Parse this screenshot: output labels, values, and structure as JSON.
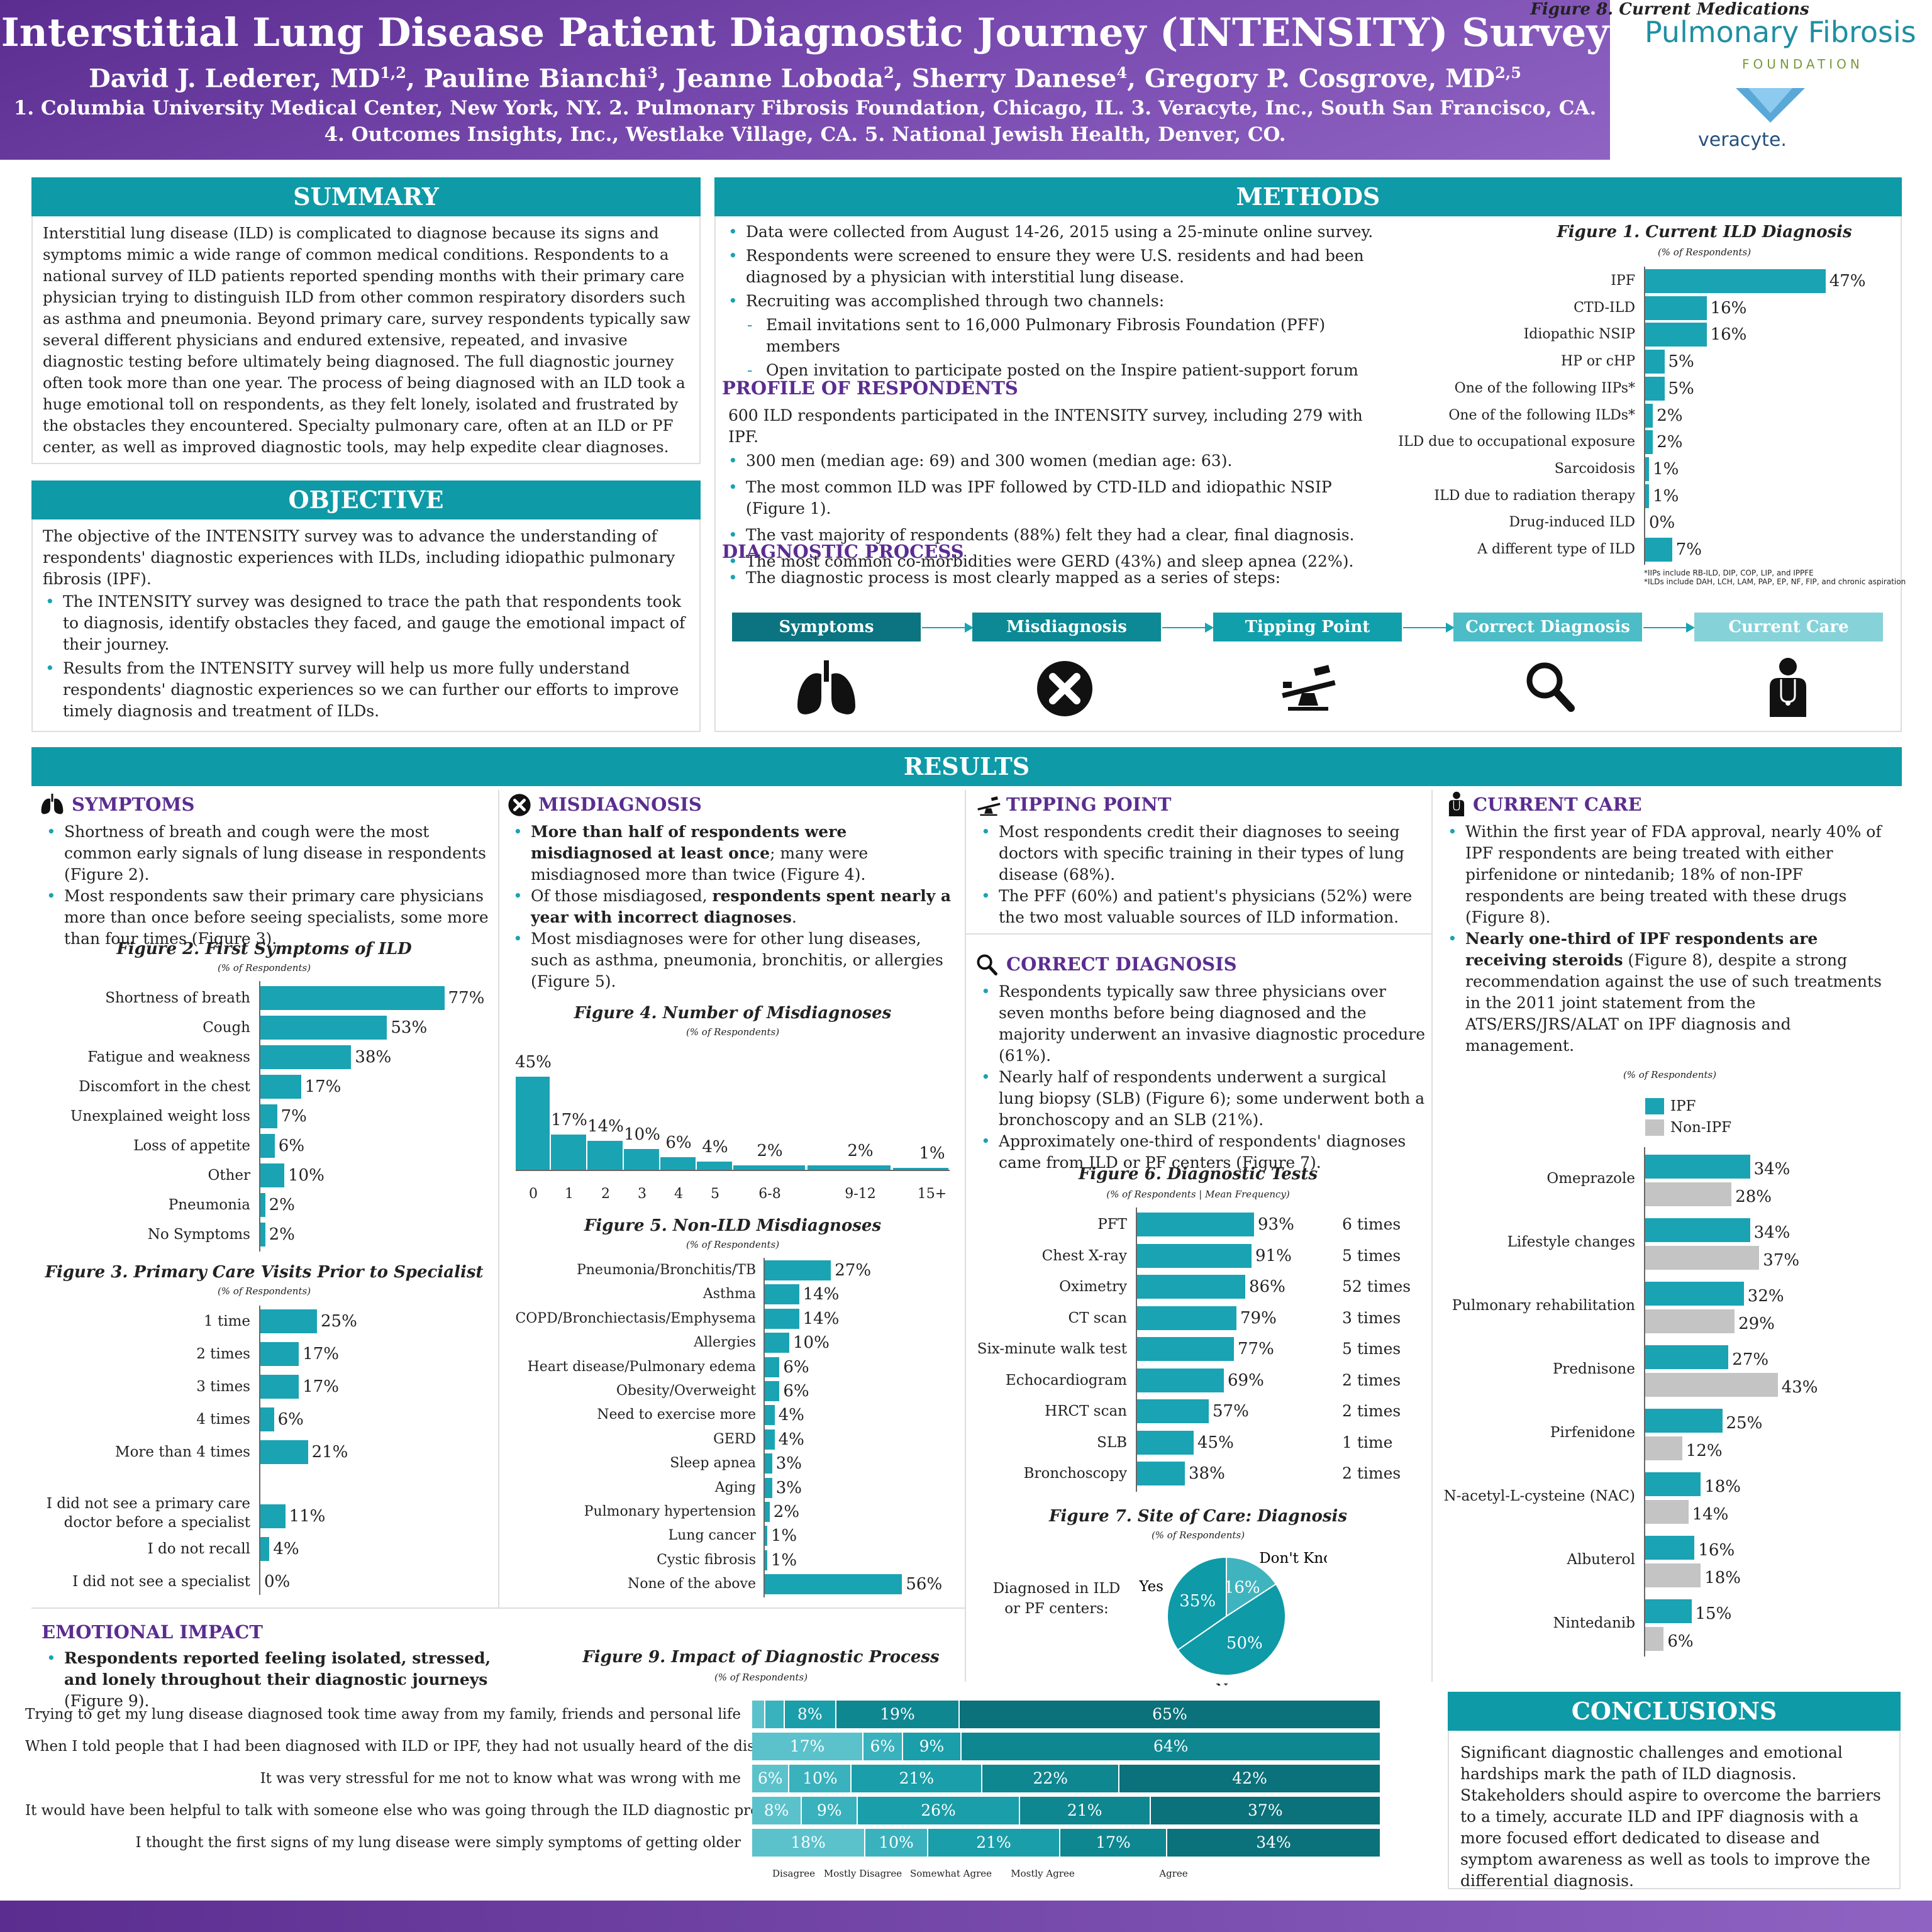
{
  "header": {
    "title": "Interstitial Lung Disease Patient Diagnostic Journey (INTENSITY) Survey",
    "authors": [
      {
        "name": "David J. Lederer, MD",
        "sup": "1,2"
      },
      {
        "name": "Pauline Bianchi",
        "sup": "3"
      },
      {
        "name": "Jeanne Loboda",
        "sup": "2"
      },
      {
        "name": "Sherry Danese",
        "sup": "4"
      },
      {
        "name": "Gregory P. Cosgrove, MD",
        "sup": "2,5"
      }
    ],
    "aff1": "1. Columbia University Medical Center, New York, NY. 2. Pulmonary Fibrosis Foundation, Chicago, IL. 3. Veracyte, Inc., South San Francisco, CA.",
    "aff2": "4. Outcomes Insights, Inc., Westlake Village, CA. 5. National Jewish Health, Denver, CO.",
    "logo1": "Pulmonary Fibrosis",
    "logo1b": "FOUNDATION",
    "logo2": "veracyte."
  },
  "summary": {
    "title": "SUMMARY",
    "text": "Interstitial lung disease (ILD) is complicated to diagnose because its signs and symptoms mimic a wide range of common medical conditions. Respondents to a national survey of ILD patients reported spending  months with their primary care physician trying to distinguish ILD from other common respiratory disorders such as asthma and pneumonia. Beyond primary care, survey respondents typically saw several different physicians and endured extensive, repeated, and invasive diagnostic testing before ultimately being diagnosed. The full diagnostic journey often took more than one year. The process of being diagnosed with an ILD took a huge emotional toll on respondents, as they felt lonely, isolated and frustrated by the obstacles they encountered. Specialty pulmonary care, often at an ILD or PF center, as well as improved diagnostic tools, may help expedite clear diagnoses."
  },
  "objective": {
    "title": "OBJECTIVE",
    "text": "The objective of the INTENSITY survey was to advance the understanding of respondents' diagnostic experiences with ILDs, including idiopathic pulmonary fibrosis (IPF).",
    "bullets": [
      "The INTENSITY survey was designed to trace the path that respondents took to diagnosis, identify obstacles they faced, and gauge the emotional impact of their journey.",
      "Results from the INTENSITY survey will help us more fully understand respondents' diagnostic experiences so we can further our efforts to improve timely diagnosis and treatment of ILDs."
    ]
  },
  "methods": {
    "title": "METHODS",
    "bullets": [
      "Data were collected from August 14-26, 2015 using a 25-minute online survey.",
      "Respondents were screened to ensure they were U.S. residents and had been diagnosed by a physician with interstitial lung disease.",
      "Recruiting was accomplished through two channels:"
    ],
    "dashes": [
      "Email invitations sent to 16,000 Pulmonary Fibrosis Foundation (PFF) members",
      "Open invitation to participate posted on the Inspire patient-support forum"
    ],
    "profile_title": "PROFILE OF RESPONDENTS",
    "profile_intro": "600 ILD respondents participated in the INTENSITY survey, including 279 with IPF.",
    "profile_bullets": [
      "300 men (median age: 69) and 300 women (median age: 63).",
      "The most common ILD was IPF followed by CTD-ILD and idiopathic NSIP (Figure 1).",
      "The vast majority of respondents (88%) felt they had a clear, final diagnosis.",
      "The most common co-morbidities were GERD (43%) and sleep apnea (22%)."
    ],
    "process_title": "DIAGNOSTIC PROCESS",
    "process_bullet": "The diagnostic process is most clearly mapped as a series of steps:",
    "steps": [
      {
        "label": "Symptoms",
        "color": "#0b7480",
        "icon": "lungs-icon"
      },
      {
        "label": "Misdiagnosis",
        "color": "#0c8994",
        "icon": "x-circle-icon"
      },
      {
        "label": "Tipping Point",
        "color": "#11a0ab",
        "icon": "seesaw-icon"
      },
      {
        "label": "Correct Diagnosis",
        "color": "#4cbcc6",
        "icon": "magnifier-icon"
      },
      {
        "label": "Current Care",
        "color": "#86d2d9",
        "icon": "doctor-icon"
      }
    ]
  },
  "fig1": {
    "title": "Figure 1. Current ILD Diagnosis",
    "subtitle": "(% of Respondents)",
    "note1": "*IIPs include RB-ILD, DIP, COP, LIP, and IPPFE",
    "note2": "*ILDs include DAH, LCH, LAM, PAP, EP, NF, FIP, and chronic aspiration"
  },
  "results": {
    "title": "RESULTS"
  },
  "symptoms": {
    "title": "SYMPTOMS",
    "bullets": [
      "Shortness of breath and cough were the most common early signals of lung disease in respondents (Figure 2).",
      "Most respondents saw their primary care physicians more than once before seeing specialists, some more than four times (Figure 3)."
    ]
  },
  "fig2": {
    "title": "Figure 2. First Symptoms of ILD",
    "subtitle": "(% of Respondents)"
  },
  "fig3": {
    "title": "Figure 3. Primary Care Visits Prior to Specialist",
    "subtitle": "(% of Respondents)"
  },
  "misdiagnosis": {
    "title": "MISDIAGNOSIS",
    "b1_bold": "More than half of respondents were misdiagnosed at least once",
    "b1_rest": "; many were misdiagnosed more than twice (Figure 4).",
    "b2_pre": "Of those misdiagosed, ",
    "b2_bold": "respondents spent nearly a year with incorrect diagnoses",
    "b2_rest": ".",
    "b3": "Most misdiagnoses were for other lung diseases, such as asthma, pneumonia, bronchitis, or allergies (Figure 5)."
  },
  "fig4": {
    "title": "Figure 4. Number of Misdiagnoses",
    "subtitle": "(% of Respondents)"
  },
  "fig5": {
    "title": "Figure 5. Non-ILD Misdiagnoses",
    "subtitle": "(% of Respondents)"
  },
  "tipping": {
    "title": "TIPPING POINT",
    "bullets": [
      "Most respondents credit their diagnoses to seeing doctors with specific training in their types of lung disease (68%).",
      "The PFF (60%) and patient's physicians (52%) were the two most valuable sources of ILD information."
    ]
  },
  "correct": {
    "title": "CORRECT DIAGNOSIS",
    "bullets": [
      "Respondents typically saw three physicians over seven months before being diagnosed and the majority underwent an invasive diagnostic procedure (61%).",
      "Nearly half of respondents underwent a surgical lung biopsy (SLB) (Figure 6); some underwent both a bronchoscopy and an SLB (21%).",
      "Approximately one-third of respondents' diagnoses came from ILD or PF centers (Figure 7)."
    ]
  },
  "fig6": {
    "title": "Figure 6. Diagnostic Tests",
    "subtitle": "(% of Respondents | Mean Frequency)"
  },
  "fig7": {
    "title": "Figure 7. Site of Care: Diagnosis",
    "subtitle": "(% of Respondents)",
    "label": "Diagnosed in ILD or PF centers:",
    "label1": "Diagnosed in ILD",
    "label2": "or PF centers:"
  },
  "care": {
    "title": "CURRENT CARE",
    "b1": "Within the first year of FDA approval, nearly 40% of IPF respondents are being treated with either pirfenidone or nintedanib; 18% of non-IPF respondents are being treated with these drugs (Figure 8).",
    "b2_bold": "Nearly one-third of IPF respondents are receiving steroids",
    "b2_rest": " (Figure 8), despite a strong recommendation against the use of such treatments in the 2011 joint statement from the ATS/ERS/JRS/ALAT  on IPF diagnosis and management."
  },
  "fig8": {
    "title": "Figure 8. Current Medications",
    "subtitle": "(% of Respondents)"
  },
  "emotional": {
    "title": "EMOTIONAL IMPACT",
    "b1_bold": "Respondents reported feeling isolated, stressed, and lonely throughout their diagnostic journeys",
    "b1_rest": " (Figure 9)."
  },
  "fig9": {
    "title": "Figure 9. Impact of Diagnostic Process",
    "subtitle": "(% of Respondents)"
  },
  "conclusions": {
    "title": "CONCLUSIONS",
    "text": "Significant diagnostic challenges and emotional hardships mark the path of ILD diagnosis. Stakeholders should aspire to overcome the barriers to a timely, accurate ILD and IPF diagnosis with a more focused effort dedicated to disease and symptom awareness as well as tools to improve the differential diagnosis."
  },
  "colors": {
    "teal": "#0e9aa7",
    "purple": "#5b2d90",
    "gray": "#c4c4c4"
  },
  "chart_data": [
    {
      "id": "fig1",
      "type": "bar",
      "orientation": "horizontal",
      "title": "Figure 1. Current ILD Diagnosis",
      "categories": [
        "IPF",
        "CTD-ILD",
        "Idiopathic NSIP",
        "HP or cHP",
        "One of the following IIPs*",
        "One of the following ILDs*",
        "ILD due to occupational exposure",
        "Sarcoidosis",
        "ILD due to radiation therapy",
        "Drug-induced ILD",
        "A different type of ILD"
      ],
      "values": [
        47,
        16,
        16,
        5,
        5,
        2,
        2,
        1,
        1,
        0,
        7
      ]
    },
    {
      "id": "fig2",
      "type": "bar",
      "orientation": "horizontal",
      "title": "Figure 2. First Symptoms of ILD",
      "categories": [
        "Shortness of breath",
        "Cough",
        "Fatigue and weakness",
        "Discomfort in the chest",
        "Unexplained weight loss",
        "Loss of appetite",
        "Other",
        "Pneumonia",
        "No Symptoms"
      ],
      "values": [
        77,
        53,
        38,
        17,
        7,
        6,
        10,
        2,
        2
      ]
    },
    {
      "id": "fig3",
      "type": "bar",
      "orientation": "horizontal",
      "title": "Figure 3. Primary Care Visits Prior to Specialist",
      "categories": [
        "1 time",
        "2 times",
        "3 times",
        "4 times",
        "More than 4 times",
        "I did not see a primary care doctor before a specialist",
        "I do not recall",
        "I did not see a specialist"
      ],
      "values": [
        25,
        17,
        17,
        6,
        21,
        11,
        4,
        0
      ]
    },
    {
      "id": "fig4",
      "type": "bar",
      "title": "Figure 4. Number of Misdiagnoses",
      "categories": [
        "0",
        "1",
        "2",
        "3",
        "4",
        "5",
        "6-8",
        "9-12",
        "15+"
      ],
      "values": [
        45,
        17,
        14,
        10,
        6,
        4,
        2,
        2,
        1
      ]
    },
    {
      "id": "fig5",
      "type": "bar",
      "orientation": "horizontal",
      "title": "Figure 5. Non-ILD Misdiagnoses",
      "categories": [
        "Pneumonia/Bronchitis/TB",
        "Asthma",
        "COPD/Bronchiectasis/Emphysema",
        "Allergies",
        "Heart disease/Pulmonary edema",
        "Obesity/Overweight",
        "Need to exercise more",
        "GERD",
        "Sleep apnea",
        "Aging",
        "Pulmonary hypertension",
        "Lung cancer",
        "Cystic fibrosis",
        "None of the above"
      ],
      "values": [
        27,
        14,
        14,
        10,
        6,
        6,
        4,
        4,
        3,
        3,
        2,
        1,
        1,
        56
      ]
    },
    {
      "id": "fig6",
      "type": "bar",
      "orientation": "horizontal",
      "title": "Figure 6. Diagnostic Tests",
      "categories": [
        "PFT",
        "Chest X-ray",
        "Oximetry",
        "CT scan",
        "Six-minute walk test",
        "Echocardiogram",
        "HRCT scan",
        "SLB",
        "Bronchoscopy"
      ],
      "values": [
        93,
        91,
        86,
        79,
        77,
        69,
        57,
        45,
        38
      ],
      "frequency": [
        "6 times",
        "5 times",
        "52 times",
        "3 times",
        "5 times",
        "2 times",
        "2 times",
        "1 time",
        "2 times"
      ]
    },
    {
      "id": "fig7",
      "type": "pie",
      "title": "Figure 7. Site of Care: Diagnosis",
      "categories": [
        "Yes",
        "Don't Know",
        "No"
      ],
      "values": [
        35,
        16,
        50
      ]
    },
    {
      "id": "fig8",
      "type": "bar",
      "orientation": "horizontal",
      "title": "Figure 8. Current Medications",
      "legend": "top-left",
      "categories": [
        "Omeprazole",
        "Lifestyle changes",
        "Pulmonary rehabilitation",
        "Prednisone",
        "Pirfenidone",
        "N-acetyl-L-cysteine (NAC)",
        "Albuterol",
        "Nintedanib"
      ],
      "series": [
        {
          "name": "IPF",
          "values": [
            34,
            34,
            32,
            27,
            25,
            18,
            16,
            15
          ]
        },
        {
          "name": "Non-IPF",
          "values": [
            28,
            37,
            29,
            43,
            12,
            14,
            18,
            6
          ]
        }
      ]
    },
    {
      "id": "fig9",
      "type": "bar",
      "orientation": "horizontal",
      "stacked": true,
      "title": "Figure 9. Impact of Diagnostic Process",
      "categories": [
        "Trying to get my lung disease diagnosed took time away from my family, friends and personal life",
        "When I told people that I had been diagnosed with ILD or IPF, they had not usually heard of the disease",
        "It was very stressful for me not to know what was wrong with me",
        "It would have been helpful to talk with someone else who was going through the ILD diagnostic process",
        "I thought the first signs of my lung disease were simply symptoms of getting older"
      ],
      "series": [
        {
          "name": "Disagree",
          "values": [
            2,
            17,
            6,
            8,
            18
          ]
        },
        {
          "name": "Mostly Disagree",
          "values": [
            3,
            6,
            10,
            9,
            10
          ]
        },
        {
          "name": "Somewhat Agree",
          "values": [
            8,
            9,
            21,
            26,
            21
          ]
        },
        {
          "name": "Mostly Agree",
          "values": [
            19,
            64,
            22,
            21,
            17
          ]
        },
        {
          "name": "Agree",
          "values": [
            65,
            null,
            42,
            37,
            34
          ]
        }
      ],
      "colors": [
        "#5bc2cc",
        "#39b2bd",
        "#1a9ea9",
        "#0e8791",
        "#0b717a"
      ]
    }
  ]
}
